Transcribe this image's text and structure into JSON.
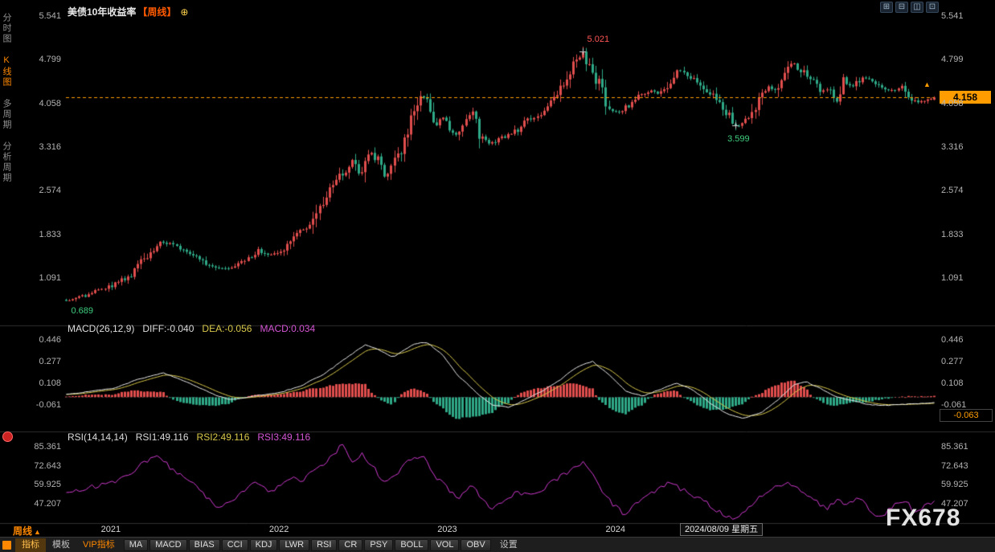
{
  "window": {
    "title": "美债10年收益率",
    "period_tag": "【周线】",
    "add_icon": "⊕",
    "layout_icons": [
      {
        "name": "layout-single-icon",
        "glyph": "⊞"
      },
      {
        "name": "layout-split-horizontal-icon",
        "glyph": "⊟"
      },
      {
        "name": "layout-split-vertical-icon",
        "glyph": "◫"
      },
      {
        "name": "layout-grid-icon",
        "glyph": "⊡"
      }
    ]
  },
  "sidebar": {
    "items": [
      {
        "key": "time-chart",
        "label": "分时图",
        "active": false
      },
      {
        "key": "kline-chart",
        "label": "K线图",
        "active": true
      },
      {
        "key": "multi-period",
        "label": "多周期",
        "active": false
      },
      {
        "key": "analysis-period",
        "label": "分析周期",
        "active": false
      }
    ]
  },
  "price_panel": {
    "axis": [
      "5.541",
      "4.799",
      "4.058",
      "3.316",
      "2.574",
      "1.833",
      "1.091"
    ],
    "last_price": "4.158",
    "arrow_glyph": "▲",
    "annotations": {
      "high": "5.021",
      "low": "3.599",
      "start_low": "0.689"
    }
  },
  "macd_panel": {
    "header": {
      "name": "MACD(26,12,9)",
      "diff": "DIFF:-0.040",
      "dea": "DEA:-0.056",
      "macd": "MACD:0.034"
    },
    "axis": [
      "0.446",
      "0.277",
      "0.108",
      "-0.061"
    ],
    "last_value": "-0.063"
  },
  "rsi_panel": {
    "header": {
      "name": "RSI(14,14,14)",
      "rsi1": "RSI1:49.116",
      "rsi2": "RSI2:49.116",
      "rsi3": "RSI3:49.116"
    },
    "axis": [
      "85.361",
      "72.643",
      "59.925",
      "47.207"
    ]
  },
  "xaxis": {
    "period_label": "周线",
    "period_arrow": "▲",
    "years": [
      "2021",
      "2022",
      "2023",
      "2024"
    ],
    "date_box": "2024/08/09 星期五",
    "watermark": "FX678"
  },
  "toolbar": {
    "tabs": [
      {
        "key": "indicators",
        "label": "指标",
        "active": true
      },
      {
        "key": "templates",
        "label": "模板",
        "active": false
      },
      {
        "key": "vip-indicators",
        "label": "VIP指标",
        "vip": true
      }
    ],
    "indicator_buttons": [
      "MA",
      "MACD",
      "BIAS",
      "CCI",
      "KDJ",
      "LWR",
      "RSI",
      "CR",
      "PSY",
      "BOLL",
      "VOL",
      "OBV"
    ],
    "settings_label": "设置"
  },
  "colors": {
    "up": "#e14d4d",
    "down": "#2ea886",
    "accent": "#ff9d00",
    "diff_line": "#e8e8e8",
    "dea_line": "#d8c84a",
    "rsi_line": "#d23bd2",
    "annotation_high": "#ff5555",
    "annotation_low": "#3fcf7f"
  },
  "chart_data": [
    {
      "id": "price",
      "type": "candlestick",
      "title": "美债10年收益率 周线",
      "x_unit": "decimal_year",
      "x_range": [
        2020.72,
        2025.88
      ],
      "bars": 268,
      "axis_ticks": [
        5.541,
        4.799,
        4.058,
        3.316,
        2.574,
        1.833,
        1.091
      ],
      "key_points": {
        "max_high": [
          2023.79,
          5.021
        ],
        "low": [
          2024.71,
          3.599
        ],
        "start_low": [
          2020.77,
          0.689
        ],
        "last_close": 4.158
      },
      "close_anchors": [
        [
          2020.72,
          0.72
        ],
        [
          2020.8,
          0.76
        ],
        [
          2020.88,
          0.84
        ],
        [
          2020.96,
          0.92
        ],
        [
          2021.04,
          1.04
        ],
        [
          2021.12,
          1.18
        ],
        [
          2021.2,
          1.48
        ],
        [
          2021.28,
          1.7
        ],
        [
          2021.34,
          1.66
        ],
        [
          2021.42,
          1.58
        ],
        [
          2021.5,
          1.46
        ],
        [
          2021.58,
          1.3
        ],
        [
          2021.64,
          1.24
        ],
        [
          2021.72,
          1.3
        ],
        [
          2021.8,
          1.4
        ],
        [
          2021.86,
          1.56
        ],
        [
          2021.92,
          1.48
        ],
        [
          2022.0,
          1.52
        ],
        [
          2022.06,
          1.78
        ],
        [
          2022.12,
          1.94
        ],
        [
          2022.16,
          1.92
        ],
        [
          2022.2,
          2.15
        ],
        [
          2022.26,
          2.48
        ],
        [
          2022.32,
          2.72
        ],
        [
          2022.38,
          2.92
        ],
        [
          2022.43,
          3.12
        ],
        [
          2022.47,
          2.8
        ],
        [
          2022.52,
          3.25
        ],
        [
          2022.57,
          3.12
        ],
        [
          2022.62,
          2.8
        ],
        [
          2022.68,
          3.08
        ],
        [
          2022.74,
          3.56
        ],
        [
          2022.79,
          3.9
        ],
        [
          2022.83,
          4.2
        ],
        [
          2022.87,
          4.12
        ],
        [
          2022.92,
          3.7
        ],
        [
          2022.97,
          3.85
        ],
        [
          2023.03,
          3.5
        ],
        [
          2023.09,
          3.72
        ],
        [
          2023.13,
          3.94
        ],
        [
          2023.19,
          3.42
        ],
        [
          2023.25,
          3.38
        ],
        [
          2023.31,
          3.46
        ],
        [
          2023.39,
          3.58
        ],
        [
          2023.45,
          3.74
        ],
        [
          2023.51,
          3.82
        ],
        [
          2023.57,
          3.96
        ],
        [
          2023.63,
          4.16
        ],
        [
          2023.69,
          4.44
        ],
        [
          2023.75,
          4.8
        ],
        [
          2023.79,
          4.91
        ],
        [
          2023.83,
          4.65
        ],
        [
          2023.89,
          4.4
        ],
        [
          2023.95,
          3.96
        ],
        [
          2024.01,
          3.9
        ],
        [
          2024.07,
          4.05
        ],
        [
          2024.13,
          4.18
        ],
        [
          2024.19,
          4.28
        ],
        [
          2024.25,
          4.21
        ],
        [
          2024.31,
          4.42
        ],
        [
          2024.35,
          4.63
        ],
        [
          2024.41,
          4.5
        ],
        [
          2024.47,
          4.45
        ],
        [
          2024.53,
          4.27
        ],
        [
          2024.58,
          4.2
        ],
        [
          2024.63,
          3.95
        ],
        [
          2024.67,
          3.8
        ],
        [
          2024.71,
          3.66
        ],
        [
          2024.77,
          3.76
        ],
        [
          2024.83,
          4.1
        ],
        [
          2024.89,
          4.36
        ],
        [
          2024.93,
          4.24
        ],
        [
          2024.99,
          4.58
        ],
        [
          2025.04,
          4.76
        ],
        [
          2025.09,
          4.62
        ],
        [
          2025.15,
          4.46
        ],
        [
          2025.21,
          4.26
        ],
        [
          2025.26,
          4.32
        ],
        [
          2025.3,
          4.05
        ],
        [
          2025.34,
          4.47
        ],
        [
          2025.39,
          4.3
        ],
        [
          2025.45,
          4.5
        ],
        [
          2025.51,
          4.42
        ],
        [
          2025.57,
          4.34
        ],
        [
          2025.62,
          4.26
        ],
        [
          2025.68,
          4.34
        ],
        [
          2025.74,
          4.14
        ],
        [
          2025.8,
          4.08
        ],
        [
          2025.88,
          4.158
        ]
      ]
    },
    {
      "id": "macd",
      "type": "macd",
      "params": [
        26,
        12,
        9
      ],
      "axis_ticks": [
        0.446,
        0.277,
        0.108,
        -0.061
      ],
      "last": {
        "diff": -0.04,
        "dea": -0.056,
        "macd": 0.034,
        "marker": -0.063
      },
      "diff_anchors": [
        [
          2020.72,
          0.02
        ],
        [
          2021.0,
          0.07
        ],
        [
          2021.15,
          0.14
        ],
        [
          2021.3,
          0.19
        ],
        [
          2021.45,
          0.11
        ],
        [
          2021.6,
          0.02
        ],
        [
          2021.7,
          -0.02
        ],
        [
          2021.85,
          0.01
        ],
        [
          2022.0,
          0.04
        ],
        [
          2022.12,
          0.09
        ],
        [
          2022.25,
          0.18
        ],
        [
          2022.4,
          0.32
        ],
        [
          2022.5,
          0.41
        ],
        [
          2022.58,
          0.37
        ],
        [
          2022.66,
          0.31
        ],
        [
          2022.78,
          0.41
        ],
        [
          2022.86,
          0.43
        ],
        [
          2022.95,
          0.34
        ],
        [
          2023.05,
          0.17
        ],
        [
          2023.15,
          0.04
        ],
        [
          2023.25,
          -0.06
        ],
        [
          2023.35,
          -0.08
        ],
        [
          2023.45,
          -0.02
        ],
        [
          2023.55,
          0.05
        ],
        [
          2023.65,
          0.13
        ],
        [
          2023.75,
          0.23
        ],
        [
          2023.85,
          0.28
        ],
        [
          2023.95,
          0.17
        ],
        [
          2024.05,
          0.04
        ],
        [
          2024.15,
          0.01
        ],
        [
          2024.25,
          0.06
        ],
        [
          2024.35,
          0.11
        ],
        [
          2024.45,
          0.05
        ],
        [
          2024.55,
          -0.05
        ],
        [
          2024.65,
          -0.13
        ],
        [
          2024.75,
          -0.165
        ],
        [
          2024.85,
          -0.12
        ],
        [
          2024.95,
          -0.02
        ],
        [
          2025.05,
          0.1
        ],
        [
          2025.12,
          0.12
        ],
        [
          2025.2,
          0.07
        ],
        [
          2025.3,
          0.0
        ],
        [
          2025.4,
          -0.03
        ],
        [
          2025.5,
          -0.06
        ],
        [
          2025.6,
          -0.065
        ],
        [
          2025.7,
          -0.055
        ],
        [
          2025.8,
          -0.05
        ],
        [
          2025.88,
          -0.04
        ]
      ]
    },
    {
      "id": "rsi",
      "type": "line",
      "params": [
        14,
        14,
        14
      ],
      "axis_ticks": [
        85.361,
        72.643,
        59.925,
        47.207
      ],
      "last": 49.116,
      "anchors": [
        [
          2020.72,
          54
        ],
        [
          2020.85,
          58
        ],
        [
          2021.0,
          61
        ],
        [
          2021.1,
          68
        ],
        [
          2021.2,
          76
        ],
        [
          2021.27,
          80
        ],
        [
          2021.35,
          70
        ],
        [
          2021.45,
          64
        ],
        [
          2021.55,
          52
        ],
        [
          2021.62,
          44
        ],
        [
          2021.7,
          48
        ],
        [
          2021.78,
          56
        ],
        [
          2021.85,
          62
        ],
        [
          2021.92,
          55
        ],
        [
          2022.0,
          59
        ],
        [
          2022.06,
          66
        ],
        [
          2022.12,
          62
        ],
        [
          2022.2,
          70
        ],
        [
          2022.3,
          79
        ],
        [
          2022.36,
          87
        ],
        [
          2022.42,
          76
        ],
        [
          2022.48,
          81
        ],
        [
          2022.55,
          71
        ],
        [
          2022.62,
          60
        ],
        [
          2022.7,
          70
        ],
        [
          2022.78,
          78
        ],
        [
          2022.84,
          80
        ],
        [
          2022.92,
          65
        ],
        [
          2023.0,
          56
        ],
        [
          2023.06,
          50
        ],
        [
          2023.12,
          60
        ],
        [
          2023.18,
          52
        ],
        [
          2023.24,
          44
        ],
        [
          2023.32,
          48
        ],
        [
          2023.4,
          55
        ],
        [
          2023.48,
          52
        ],
        [
          2023.56,
          58
        ],
        [
          2023.64,
          64
        ],
        [
          2023.72,
          70
        ],
        [
          2023.8,
          75
        ],
        [
          2023.88,
          61
        ],
        [
          2023.96,
          47
        ],
        [
          2024.04,
          40
        ],
        [
          2024.12,
          48
        ],
        [
          2024.2,
          55
        ],
        [
          2024.3,
          61
        ],
        [
          2024.38,
          57
        ],
        [
          2024.46,
          52
        ],
        [
          2024.54,
          47
        ],
        [
          2024.62,
          40
        ],
        [
          2024.7,
          36
        ],
        [
          2024.78,
          44
        ],
        [
          2024.86,
          54
        ],
        [
          2024.94,
          58
        ],
        [
          2025.0,
          62
        ],
        [
          2025.08,
          56
        ],
        [
          2025.16,
          50
        ],
        [
          2025.24,
          44
        ],
        [
          2025.3,
          50
        ],
        [
          2025.36,
          46
        ],
        [
          2025.44,
          52
        ],
        [
          2025.5,
          42
        ],
        [
          2025.56,
          37
        ],
        [
          2025.62,
          44
        ],
        [
          2025.7,
          50
        ],
        [
          2025.76,
          42
        ],
        [
          2025.82,
          45
        ],
        [
          2025.88,
          49.116
        ]
      ]
    }
  ]
}
